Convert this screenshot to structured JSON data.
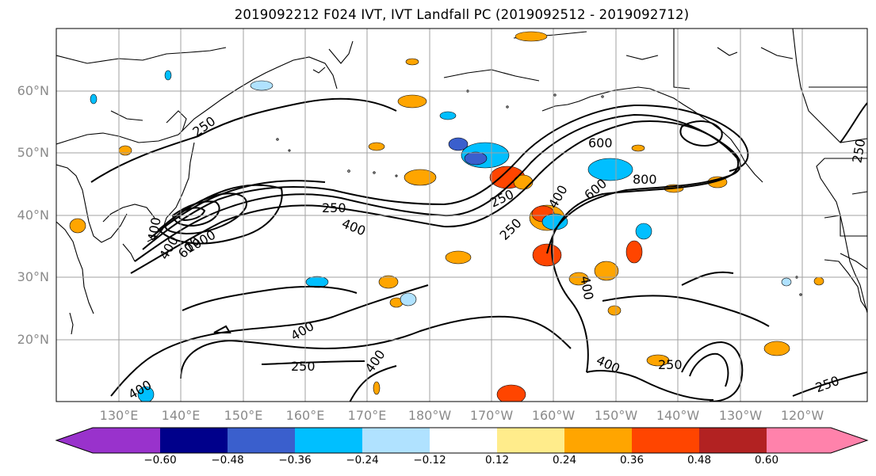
{
  "title": "2019092212 F024 IVT, IVT Landfall PC (2019092512 - 2019092712)",
  "map": {
    "lat_labels": [
      "60°N",
      "50°N",
      "40°N",
      "30°N",
      "20°N"
    ],
    "lon_labels": [
      "130°E",
      "140°E",
      "150°E",
      "160°E",
      "170°E",
      "180°W",
      "170°W",
      "160°W",
      "150°W",
      "140°W",
      "130°W",
      "120°W"
    ],
    "contour_labels": [
      "250",
      "400",
      "400",
      "600",
      "1000",
      "250",
      "400",
      "250",
      "600",
      "800",
      "600",
      "400",
      "250",
      "400",
      "400",
      "250",
      "400",
      "400",
      "250",
      "250",
      "400",
      "250"
    ],
    "grid": true
  },
  "colorbar": {
    "colors": [
      "#9932cc",
      "#00008b",
      "#3a5fcd",
      "#00bfff",
      "#b0e2ff",
      "#ffffff",
      "#ffec8b",
      "#ffa500",
      "#ff4500",
      "#b22222",
      "#ff82ab"
    ],
    "tick_labels": [
      "−0.60",
      "−0.48",
      "−0.36",
      "−0.24",
      "−0.12",
      "0.12",
      "0.24",
      "0.36",
      "0.48",
      "0.60"
    ],
    "extend": "both"
  },
  "colors": {
    "positive_fill": "#ffa500",
    "negative_fill": "#00bfff",
    "contour": "#000000",
    "coastline": "#000000"
  }
}
